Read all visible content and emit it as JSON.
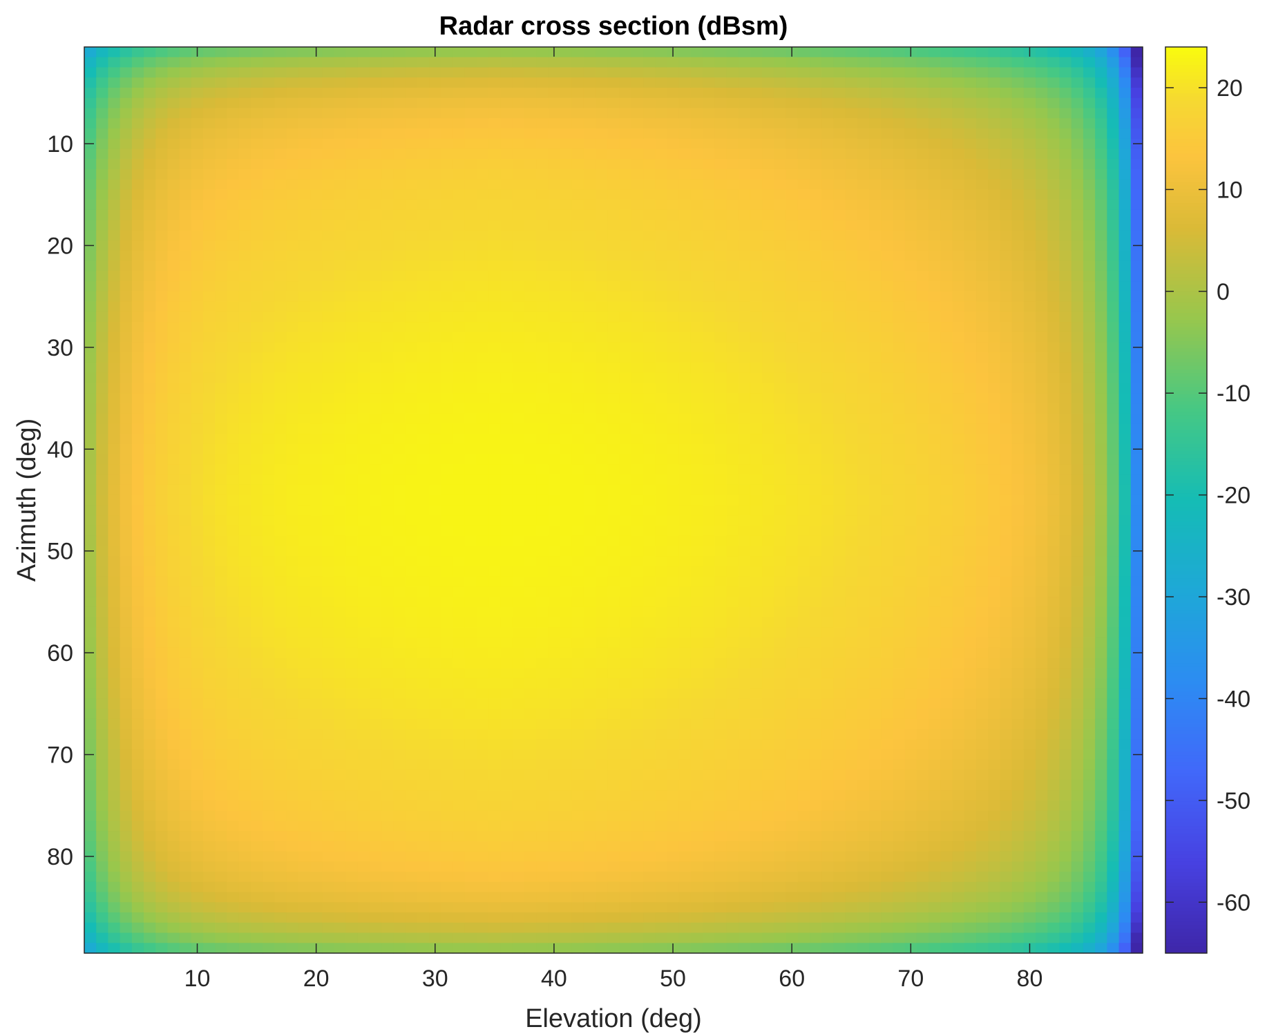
{
  "chart_data": {
    "type": "heatmap",
    "title": "Radar cross section (dBsm)",
    "xlabel": "Elevation (deg)",
    "ylabel": "Azimuth (deg)",
    "xlim": [
      0.5,
      89.5
    ],
    "ylim": [
      0.5,
      89.5
    ],
    "y_reversed": true,
    "x_ticks": [
      10,
      20,
      30,
      40,
      50,
      60,
      70,
      80
    ],
    "y_ticks": [
      10,
      20,
      30,
      40,
      50,
      60,
      70,
      80
    ],
    "x_tick_labels": [
      "10",
      "20",
      "30",
      "40",
      "50",
      "60",
      "70",
      "80"
    ],
    "y_tick_labels": [
      "10",
      "20",
      "30",
      "40",
      "50",
      "60",
      "70",
      "80"
    ],
    "grid": 89,
    "color_limits": [
      -65,
      24
    ],
    "colormap": "parula",
    "colorbar": {
      "ticks": [
        20,
        10,
        0,
        -10,
        -20,
        -30,
        -40,
        -50,
        -60
      ],
      "tick_labels": [
        "20",
        "10",
        "0",
        "-10",
        "-20",
        "-30",
        "-40",
        "-50",
        "-60"
      ]
    },
    "samples": [
      {
        "elevation": 1,
        "azimuth": 1,
        "rcs": -28
      },
      {
        "elevation": 1,
        "azimuth": 45,
        "rcs": -3
      },
      {
        "elevation": 10,
        "azimuth": 10,
        "rcs": 13
      },
      {
        "elevation": 35,
        "azimuth": 45,
        "rcs": 23
      },
      {
        "elevation": 70,
        "azimuth": 45,
        "rcs": 12
      },
      {
        "elevation": 80,
        "azimuth": 45,
        "rcs": -5
      },
      {
        "elevation": 85,
        "azimuth": 45,
        "rcs": -25
      },
      {
        "elevation": 89,
        "azimuth": 45,
        "rcs": -57
      },
      {
        "elevation": 89,
        "azimuth": 89,
        "rcs": -63
      }
    ],
    "grid_lines": false,
    "legend": "none"
  }
}
